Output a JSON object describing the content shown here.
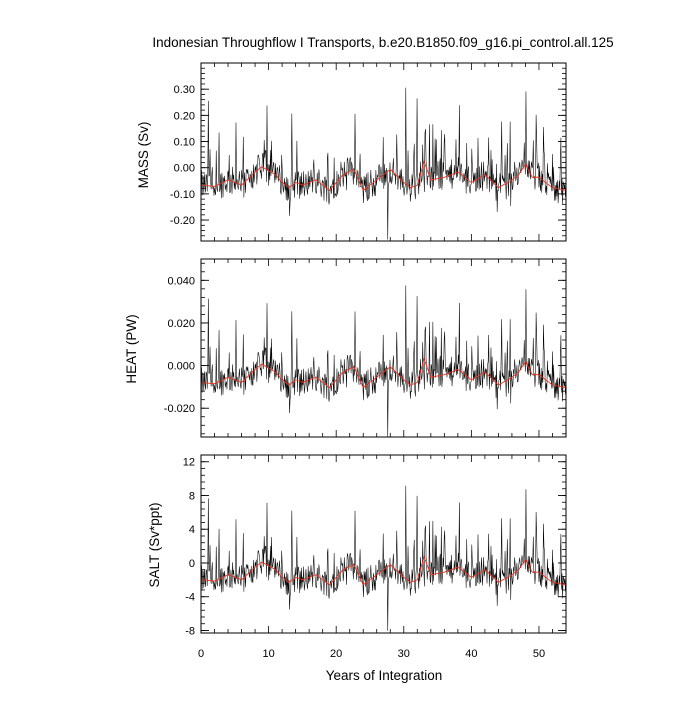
{
  "chart_data": {
    "type": "line",
    "title": "Indonesian Throughflow I Transports, b.e20.B1850.f09_g16.pi_control.all.125",
    "xlabel": "Years of Integration",
    "xlim": [
      0,
      54
    ],
    "xticks": [
      0,
      10,
      20,
      30,
      40,
      50
    ],
    "series_colors": {
      "monthly": "#000000",
      "smoothed": "#e8321e"
    },
    "smooth_anchors_x": [
      0,
      2,
      4,
      6,
      8,
      9,
      11,
      12,
      13,
      14,
      15,
      17,
      19,
      20,
      21,
      22.5,
      23,
      24,
      26,
      28,
      30,
      31,
      32,
      33,
      34,
      36,
      38,
      40,
      42,
      44,
      46,
      47,
      48,
      49,
      50,
      52,
      54
    ],
    "smooth_anchors_y_mass": [
      -0.08,
      -0.085,
      -0.06,
      -0.08,
      -0.03,
      -0.01,
      -0.04,
      -0.07,
      -0.09,
      -0.07,
      -0.08,
      -0.06,
      -0.1,
      -0.07,
      -0.04,
      -0.02,
      -0.04,
      -0.1,
      -0.06,
      -0.02,
      -0.07,
      -0.09,
      -0.08,
      0.01,
      -0.06,
      -0.05,
      -0.03,
      -0.07,
      -0.04,
      -0.09,
      -0.06,
      -0.04,
      0.0,
      -0.05,
      -0.05,
      -0.09,
      -0.1
    ],
    "charts": [
      {
        "panel": "mass",
        "ylabel": "MASS (Sv)",
        "ylim": [
          -0.28,
          0.4
        ],
        "yticks": [
          -0.2,
          -0.1,
          0.0,
          0.1,
          0.2,
          0.3
        ],
        "ytick_labels": [
          "-0.20",
          "-0.10",
          "0.00",
          "0.10",
          "0.20",
          "0.30"
        ],
        "series": [
          {
            "name": "",
            "role": "monthly",
            "center": -0.1,
            "noise": 0.09,
            "max": 0.36,
            "min": -0.28
          },
          {
            "name": "",
            "role": "smoothed"
          }
        ]
      },
      {
        "panel": "heat",
        "ylabel": "HEAT (PW)",
        "ylim": [
          -0.0335,
          0.05
        ],
        "yticks": [
          -0.02,
          0.0,
          0.02,
          0.04
        ],
        "ytick_labels": [
          "-0.020",
          "0.000",
          "0.020",
          "0.040"
        ],
        "series": [
          {
            "name": "",
            "role": "monthly",
            "center": -0.012,
            "noise": 0.011,
            "max": 0.045,
            "min": -0.0335
          },
          {
            "name": "",
            "role": "smoothed"
          }
        ]
      },
      {
        "panel": "salt",
        "ylabel": "SALT (Sv*ppt)",
        "ylim": [
          -8.3,
          12.8
        ],
        "yticks": [
          -8,
          -4,
          0,
          4,
          8,
          12
        ],
        "ytick_labels": [
          "-8",
          "-4",
          "0",
          "4",
          "8",
          "12"
        ],
        "series": [
          {
            "name": "",
            "role": "monthly",
            "center": -3.0,
            "noise": 2.7,
            "max": 11.0,
            "min": -8.0
          },
          {
            "name": "",
            "role": "smoothed"
          }
        ]
      }
    ]
  }
}
